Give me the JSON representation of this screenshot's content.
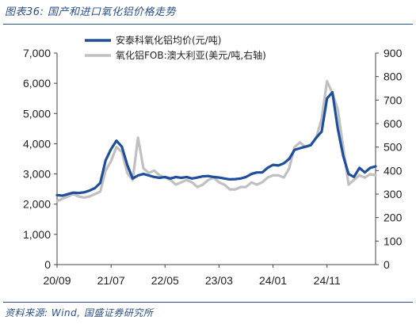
{
  "figure": {
    "title": "图表36:  国产和进口氧化铝价格走势",
    "source": "资料来源:  Wind,  国盛证券研究所"
  },
  "colors": {
    "domestic": "#1f4e9c",
    "import": "#c0c0c0",
    "header": "#2b4f8a"
  },
  "chart_data": {
    "type": "line",
    "x_tick_labels": [
      "20/09",
      "21/07",
      "22/05",
      "23/03",
      "24/01",
      "24/11"
    ],
    "x_tick_dates": [
      "2020-09",
      "2021-07",
      "2022-05",
      "2023-03",
      "2024-01",
      "2024-11"
    ],
    "x_range": [
      "2020-09",
      "2025-08"
    ],
    "y_left": {
      "range": [
        0,
        7000
      ],
      "ticks": [
        "0",
        "1,000",
        "2,000",
        "3,000",
        "4,000",
        "5,000",
        "6,000",
        "7,000"
      ]
    },
    "y_right": {
      "range": [
        0,
        900
      ],
      "ticks": [
        "0",
        "100",
        "200",
        "300",
        "400",
        "500",
        "600",
        "700",
        "800",
        "900"
      ]
    },
    "grid": false,
    "legend_position": "top",
    "series": [
      {
        "name": "安泰科氧化铝均价(元/吨)",
        "axis": "left",
        "x": [
          "2020-09",
          "2020-10",
          "2020-11",
          "2020-12",
          "2021-01",
          "2021-02",
          "2021-03",
          "2021-04",
          "2021-05",
          "2021-06",
          "2021-07",
          "2021-08",
          "2021-09",
          "2021-10",
          "2021-11",
          "2021-12",
          "2022-01",
          "2022-02",
          "2022-03",
          "2022-04",
          "2022-05",
          "2022-06",
          "2022-07",
          "2022-08",
          "2022-09",
          "2022-10",
          "2022-11",
          "2022-12",
          "2023-01",
          "2023-02",
          "2023-03",
          "2023-04",
          "2023-05",
          "2023-06",
          "2023-07",
          "2023-08",
          "2023-09",
          "2023-10",
          "2023-11",
          "2023-12",
          "2024-01",
          "2024-02",
          "2024-03",
          "2024-04",
          "2024-05",
          "2024-06",
          "2024-07",
          "2024-08",
          "2024-09",
          "2024-10",
          "2024-11",
          "2024-12",
          "2025-01",
          "2025-02",
          "2025-03",
          "2025-04",
          "2025-05",
          "2025-06",
          "2025-07",
          "2025-08"
        ],
        "values": [
          2300,
          2280,
          2330,
          2380,
          2370,
          2390,
          2450,
          2530,
          2700,
          3450,
          3820,
          4100,
          3900,
          3300,
          2850,
          2950,
          3000,
          2950,
          2900,
          2870,
          2900,
          2850,
          2900,
          2870,
          2900,
          2850,
          2880,
          2920,
          2930,
          2900,
          2880,
          2850,
          2820,
          2830,
          2850,
          2900,
          3000,
          3050,
          3050,
          3200,
          3300,
          3280,
          3350,
          3500,
          3800,
          3850,
          3900,
          3950,
          4200,
          4400,
          5500,
          5700,
          4500,
          3600,
          3000,
          2900,
          3200,
          3050,
          3200,
          3250
        ]
      },
      {
        "name": "氧化铝FOB:澳大利亚(美元/吨,右轴)",
        "axis": "right",
        "x": [
          "2020-09",
          "2020-10",
          "2020-11",
          "2020-12",
          "2021-01",
          "2021-02",
          "2021-03",
          "2021-04",
          "2021-05",
          "2021-06",
          "2021-07",
          "2021-08",
          "2021-09",
          "2021-10",
          "2021-11",
          "2021-12",
          "2022-01",
          "2022-02",
          "2022-03",
          "2022-04",
          "2022-05",
          "2022-06",
          "2022-07",
          "2022-08",
          "2022-09",
          "2022-10",
          "2022-11",
          "2022-12",
          "2023-01",
          "2023-02",
          "2023-03",
          "2023-04",
          "2023-05",
          "2023-06",
          "2023-07",
          "2023-08",
          "2023-09",
          "2023-10",
          "2023-11",
          "2023-12",
          "2024-01",
          "2024-02",
          "2024-03",
          "2024-04",
          "2024-05",
          "2024-06",
          "2024-07",
          "2024-08",
          "2024-09",
          "2024-10",
          "2024-11",
          "2024-12",
          "2025-01",
          "2025-02",
          "2025-03",
          "2025-04",
          "2025-05",
          "2025-06",
          "2025-07",
          "2025-08"
        ],
        "values": [
          270,
          280,
          290,
          300,
          290,
          285,
          290,
          300,
          310,
          400,
          440,
          500,
          480,
          390,
          360,
          540,
          410,
          390,
          400,
          380,
          370,
          360,
          340,
          350,
          360,
          350,
          330,
          340,
          360,
          370,
          350,
          340,
          320,
          320,
          330,
          330,
          350,
          340,
          350,
          370,
          380,
          380,
          370,
          410,
          500,
          520,
          500,
          510,
          540,
          620,
          780,
          730,
          660,
          500,
          340,
          360,
          380,
          370,
          385,
          380
        ]
      }
    ]
  }
}
